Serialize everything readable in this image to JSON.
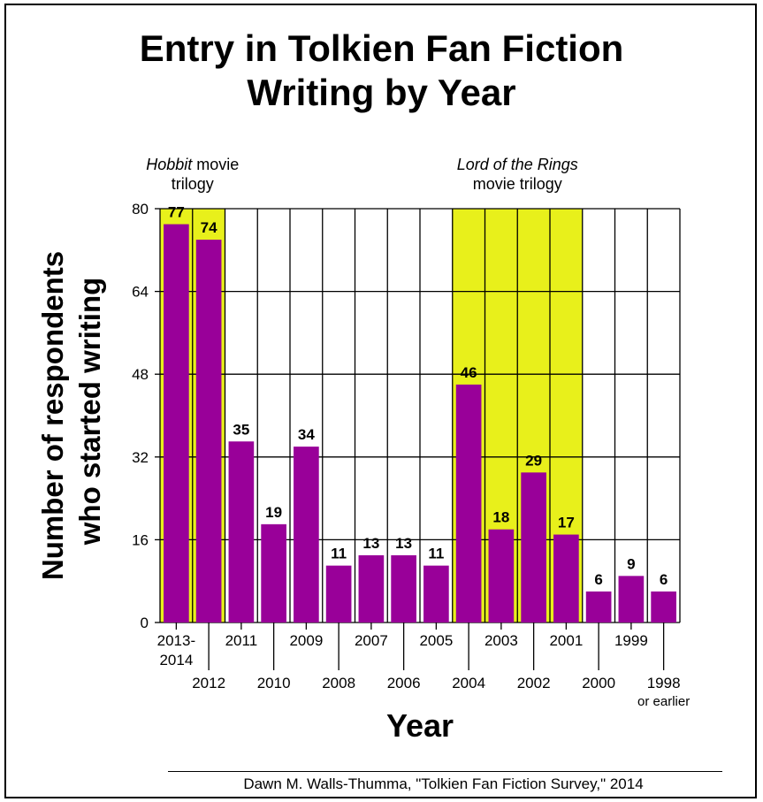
{
  "title_line1": "Entry in Tolkien Fan Fiction",
  "title_line2": "Writing by Year",
  "source": "Dawn M. Walls-Thumma, \"Tolkien Fan Fiction Survey,\" 2014",
  "colors": {
    "bar": "#990099",
    "highlight": "#e8f01b",
    "grid": "#000000"
  },
  "chart_data": {
    "type": "bar",
    "title": "Entry in Tolkien Fan Fiction Writing by Year",
    "xlabel": "Year",
    "ylabel_line1": "Number of respondents",
    "ylabel_line2": "who started writing",
    "ylim": [
      0,
      80
    ],
    "yticks": [
      0,
      16,
      32,
      48,
      64,
      80
    ],
    "grid": true,
    "categories": [
      "2013-2014",
      "2012",
      "2011",
      "2010",
      "2009",
      "2008",
      "2007",
      "2006",
      "2005",
      "2004",
      "2003",
      "2002",
      "2001",
      "2000",
      "1999",
      "1998 or earlier"
    ],
    "category_labels": [
      [
        "2013-",
        "2014"
      ],
      [
        "2012"
      ],
      [
        "2011"
      ],
      [
        "2010"
      ],
      [
        "2009"
      ],
      [
        "2008"
      ],
      [
        "2007"
      ],
      [
        "2006"
      ],
      [
        "2005"
      ],
      [
        "2004"
      ],
      [
        "2003"
      ],
      [
        "2002"
      ],
      [
        "2001"
      ],
      [
        "2000"
      ],
      [
        "1999"
      ],
      [
        "1998",
        "or earlier"
      ]
    ],
    "values": [
      77,
      74,
      35,
      19,
      34,
      11,
      13,
      13,
      11,
      46,
      18,
      29,
      17,
      6,
      9,
      6
    ],
    "highlights": [
      {
        "from": "2013-2014",
        "to": "2012",
        "label_italic": "Hobbit",
        "label_rest": " movie",
        "label_line2": "trilogy"
      },
      {
        "from": "2004",
        "to": "2001",
        "label_italic": "Lord of the Rings",
        "label_rest": "",
        "label_line2": "movie trilogy"
      }
    ]
  }
}
